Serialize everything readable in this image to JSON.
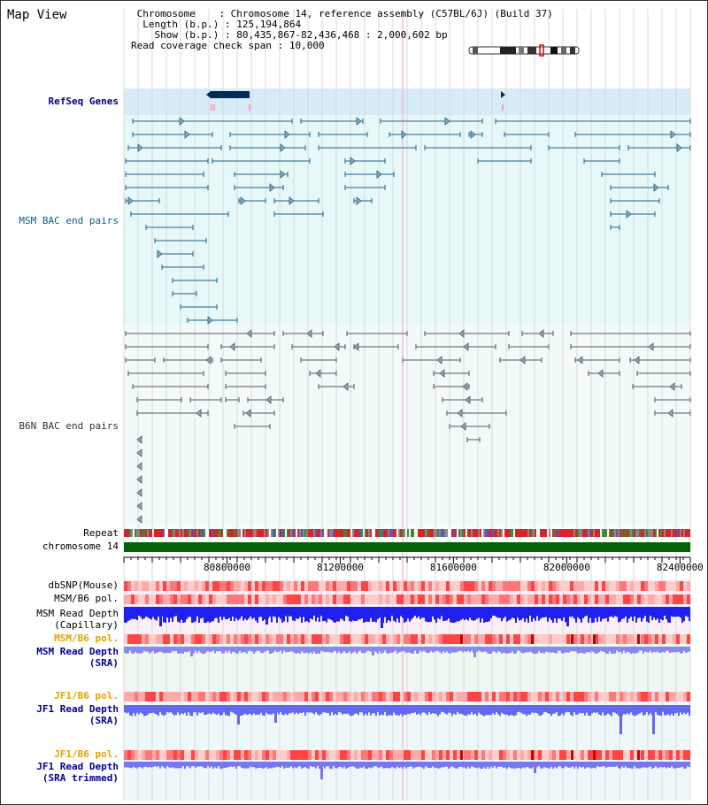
{
  "title": "Map View",
  "header": {
    "chromosome_key": "Chromosome",
    "chromosome_value": "Chromosome 14, reference assembly (C57BL/6J) (Build 37)",
    "length_key": "Length (b.p.)",
    "length_value": "125,194,864",
    "show_key": "Show (b.p.)",
    "show_value": "80,435,867-82,436,468 : 2,000,602 bp",
    "coverage_key": "Read coverage check span",
    "coverage_value": "10,000"
  },
  "tracks": {
    "refseq": "RefSeq Genes",
    "msm_bac": "MSM BAC end pairs",
    "b6n_bac": "B6N BAC end pairs",
    "repeat": "Repeat",
    "chromosome": "chromosome 14",
    "dbsnp": "dbSNP(Mouse)",
    "msm_b6_pol_1": "MSM/B6 pol.",
    "msm_read_depth_cap_1": "MSM Read Depth",
    "msm_read_depth_cap_2": "(Capillary)",
    "msm_b6_pol_2": "MSM/B6 pol.",
    "msm_read_depth_sra_1": "MSM Read Depth",
    "msm_read_depth_sra_2": "(SRA)",
    "jf1_b6_pol_1": "JF1/B6 pol.",
    "jf1_read_depth_sra_1": "JF1 Read Depth",
    "jf1_read_depth_sra_2": "(SRA)",
    "jf1_b6_pol_2": "JF1/B6 pol.",
    "jf1_read_depth_trim_1": "JF1 Read Depth",
    "jf1_read_depth_trim_2": "(SRA trimmed)"
  },
  "axis": {
    "ticks": [
      "80800000",
      "81200000",
      "81600000",
      "82000000",
      "82400000"
    ],
    "start_bp": 80435867,
    "end_bp": 82436468
  },
  "colors": {
    "refseq_bg": "#d6ecf8",
    "bac_bg": "#e6f8f8",
    "msm_line": "#1f5f8a",
    "b6n_line": "#555555",
    "chromosome_bar": "#006400",
    "pol_light": "#ffcccc",
    "pol_dark": "#ff4444",
    "depth_capillary": "#2020ee",
    "depth_sra": "#8888ee",
    "grid": "#d8d8d8",
    "marker": "#ff99cc"
  }
}
